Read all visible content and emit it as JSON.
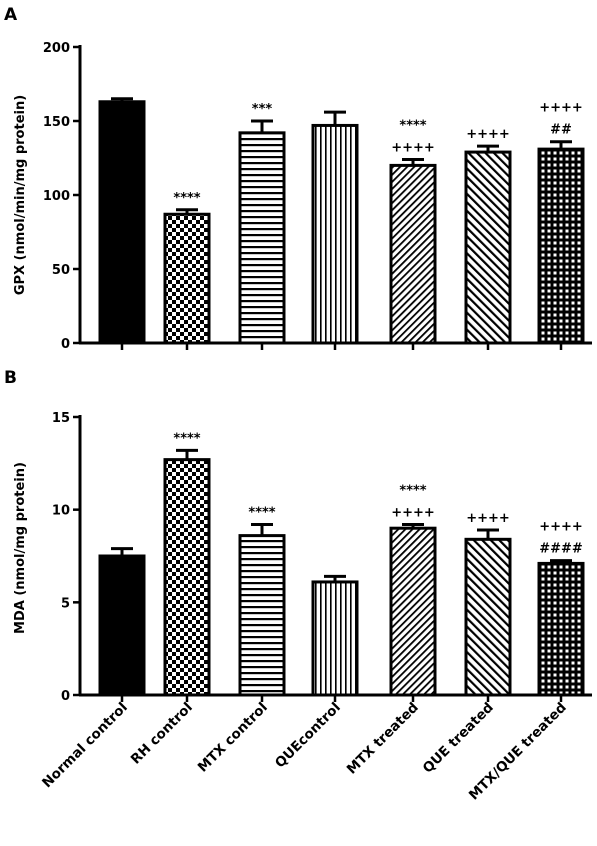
{
  "categories": [
    "Normal control",
    "RH control",
    "MTX control",
    "QUEcontrol",
    "MTX treated",
    "QUE treated",
    "MTX/QUE treated"
  ],
  "patterns": [
    "solid",
    "checker",
    "hlines",
    "vlines",
    "diag-fine",
    "diag-coarse",
    "grid"
  ],
  "chart_data": [
    {
      "type": "bar",
      "panel": "A",
      "ylabel": "GPX (nmol/min/mg protein)",
      "ylim": [
        0,
        200
      ],
      "yticks": [
        0,
        50,
        100,
        150,
        200
      ],
      "values": [
        163,
        87,
        142,
        147,
        120,
        129,
        131
      ],
      "errors": [
        2,
        3,
        8,
        9,
        4,
        4,
        5
      ],
      "annotations": [
        [],
        [
          "****"
        ],
        [
          "***"
        ],
        [],
        [
          "++++",
          "****"
        ],
        [
          "++++"
        ],
        [
          "##",
          "++++"
        ]
      ]
    },
    {
      "type": "bar",
      "panel": "B",
      "ylabel": "MDA (nmol/mg protein)",
      "ylim": [
        0,
        15
      ],
      "yticks": [
        0,
        5,
        10,
        15
      ],
      "values": [
        7.5,
        12.7,
        8.6,
        6.1,
        9.0,
        8.4,
        7.1
      ],
      "errors": [
        0.4,
        0.5,
        0.6,
        0.3,
        0.2,
        0.5,
        0.15
      ],
      "annotations": [
        [],
        [
          "****"
        ],
        [
          "****"
        ],
        [],
        [
          "++++",
          "****"
        ],
        [
          "++++"
        ],
        [
          "####",
          "++++"
        ]
      ]
    }
  ]
}
